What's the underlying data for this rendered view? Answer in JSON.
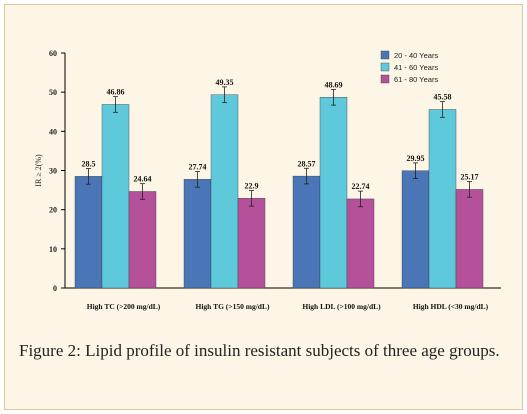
{
  "chart_data": {
    "type": "bar",
    "ylabel": "IR ≥ 2(%)",
    "ylim": [
      0,
      60
    ],
    "yticks": [
      "0",
      "10",
      "20",
      "30",
      "40",
      "50",
      "60"
    ],
    "categories": [
      "High TC (>200 mg/dL)",
      "High TG (>150 mg/dL)",
      "High LDL (>100 mg/dL)",
      "High HDL (<30 mg/dL)"
    ],
    "series": [
      {
        "name": "20 - 40  Years",
        "color": "#4a76b8",
        "values": [
          28.5,
          27.74,
          28.57,
          29.95
        ],
        "labels": [
          "28.5",
          "27.74",
          "28.57",
          "29.95"
        ]
      },
      {
        "name": "41 - 60  Years",
        "color": "#5fc9dc",
        "values": [
          46.86,
          49.35,
          48.69,
          45.58
        ],
        "labels": [
          "46.86",
          "49.35",
          "48.69",
          "45.58"
        ]
      },
      {
        "name": "61 - 80  Years",
        "color": "#b5509a",
        "values": [
          24.64,
          22.9,
          22.74,
          25.17
        ],
        "labels": [
          "24.64",
          "22.9",
          "22.74",
          "25.17"
        ]
      }
    ],
    "legend_position": "top-right",
    "grid": false
  },
  "caption": {
    "label": "Figure 2:",
    "text": " Lipid profile of insulin resistant subjects of three age groups."
  }
}
